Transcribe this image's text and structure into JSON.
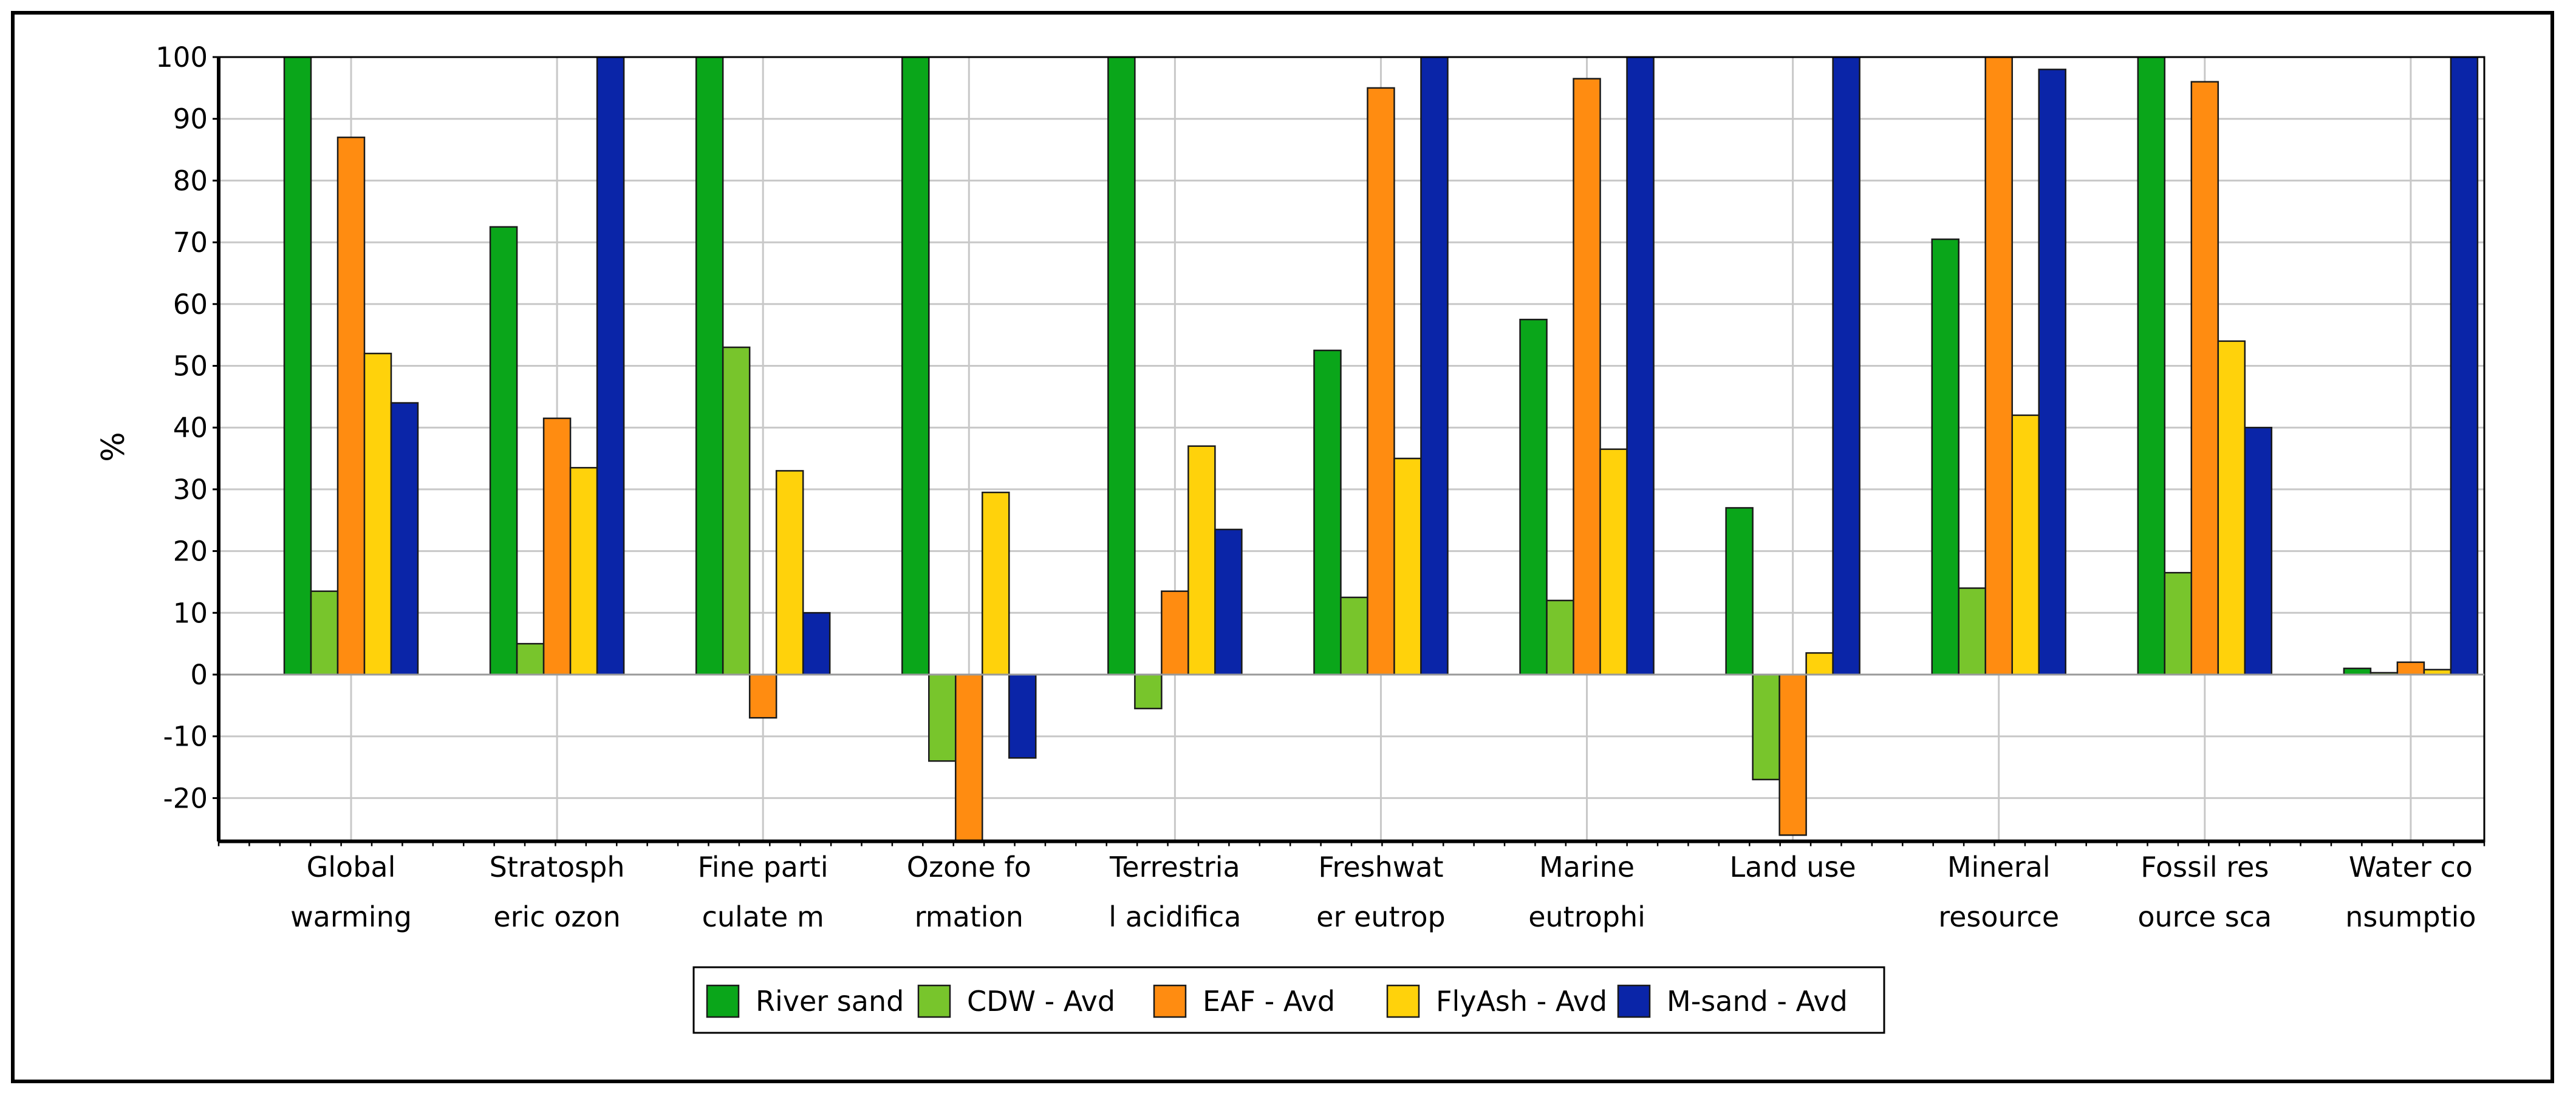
{
  "chart_data": {
    "type": "bar",
    "title": "",
    "xlabel": "",
    "ylabel": "%",
    "ylim": [
      -27,
      100
    ],
    "yticks": [
      100,
      90,
      80,
      70,
      60,
      50,
      40,
      30,
      20,
      10,
      0,
      -10,
      -20
    ],
    "grid": true,
    "legend_position": "bottom-center",
    "categories": [
      [
        "Global",
        "warming"
      ],
      [
        "Stratosph",
        "eric ozon"
      ],
      [
        "Fine parti",
        "culate m"
      ],
      [
        "Ozone fo",
        "rmation"
      ],
      [
        "Terrestria",
        "l acidifica"
      ],
      [
        "Freshwat",
        "er eutrop"
      ],
      [
        "Marine",
        "eutrophi"
      ],
      [
        "Land use",
        ""
      ],
      [
        "Mineral",
        "resource"
      ],
      [
        "Fossil res",
        "ource sca"
      ],
      [
        "Water co",
        "nsumptio"
      ]
    ],
    "series": [
      {
        "name": "River sand",
        "color": "#0aa61a",
        "values": [
          100,
          72.5,
          100,
          100,
          100,
          52.5,
          57.5,
          27,
          70.5,
          100,
          1
        ]
      },
      {
        "name": "CDW - Avd",
        "color": "#78c52c",
        "values": [
          13.5,
          5,
          53,
          -14,
          -5.5,
          12.5,
          12,
          -17,
          14,
          16.5,
          0.3
        ]
      },
      {
        "name": "EAF - Avd",
        "color": "#ff8c11",
        "values": [
          87,
          41.5,
          -7,
          -27,
          13.5,
          95,
          96.5,
          -26,
          100,
          96,
          2
        ]
      },
      {
        "name": "FlyAsh - Avd",
        "color": "#ffd20b",
        "values": [
          52,
          33.5,
          33,
          29.5,
          37,
          35,
          36.5,
          3.5,
          42,
          54,
          0.8
        ]
      },
      {
        "name": "M-sand - Avd",
        "color": "#0a25a8",
        "values": [
          44,
          100,
          10,
          -13.5,
          23.5,
          100,
          100,
          100,
          98,
          40,
          100
        ]
      }
    ]
  }
}
